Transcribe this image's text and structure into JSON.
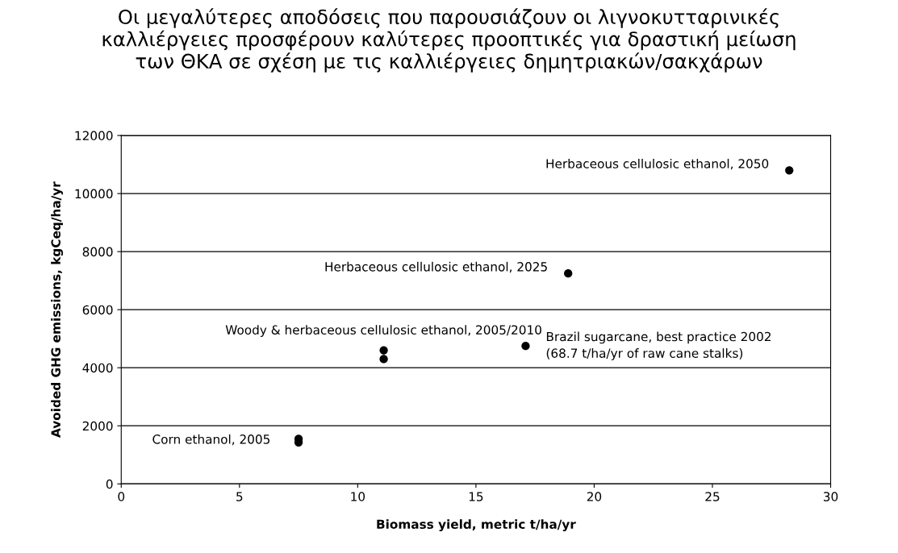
{
  "chart_data": {
    "type": "scatter",
    "title": "Οι μεγαλύτερες αποδόσεις που παρουσιάζουν οι λιγνοκυτταρινικές\nκαλλιέργειες προσφέρουν καλύτερες προοπτικές για δραστική μείωση\nτων ΘΚΑ σε σχέση με τις καλλιέργειες δημητριακών/σακχάρων",
    "xlabel": "Biomass yield, metric t/ha/yr",
    "ylabel": "Avoided GHG emissions, kgCeq/ha/yr",
    "x": [
      7.5,
      7.5,
      11.1,
      11.1,
      17.1,
      18.9,
      28.25
    ],
    "values": [
      1550,
      1430,
      4600,
      4300,
      4750,
      7250,
      10800
    ],
    "color": "#000000",
    "marker": "circle",
    "xlim": [
      0,
      30
    ],
    "xticks": [
      0,
      5,
      10,
      15,
      20,
      25,
      30
    ],
    "ylim": [
      0,
      12000
    ],
    "yticks": [
      0,
      2000,
      4000,
      6000,
      8000,
      10000,
      12000
    ],
    "grid": "y",
    "legend": false,
    "annotations": [
      {
        "text": "Corn ethanol, 2005",
        "x": 7.5,
        "y": 1500
      },
      {
        "text": "Woody & herbaceous cellulosic ethanol, 2005/2010",
        "x": 11.1,
        "y": 4600
      },
      {
        "text": "Brazil sugarcane, best practice 2002\n(68.7 t/ha/yr of raw cane stalks)",
        "x": 17.1,
        "y": 4750
      },
      {
        "text": "Herbaceous cellulosic ethanol, 2025",
        "x": 18.9,
        "y": 7250
      },
      {
        "text": "Herbaceous cellulosic ethanol, 2050",
        "x": 28.25,
        "y": 10800
      }
    ]
  }
}
